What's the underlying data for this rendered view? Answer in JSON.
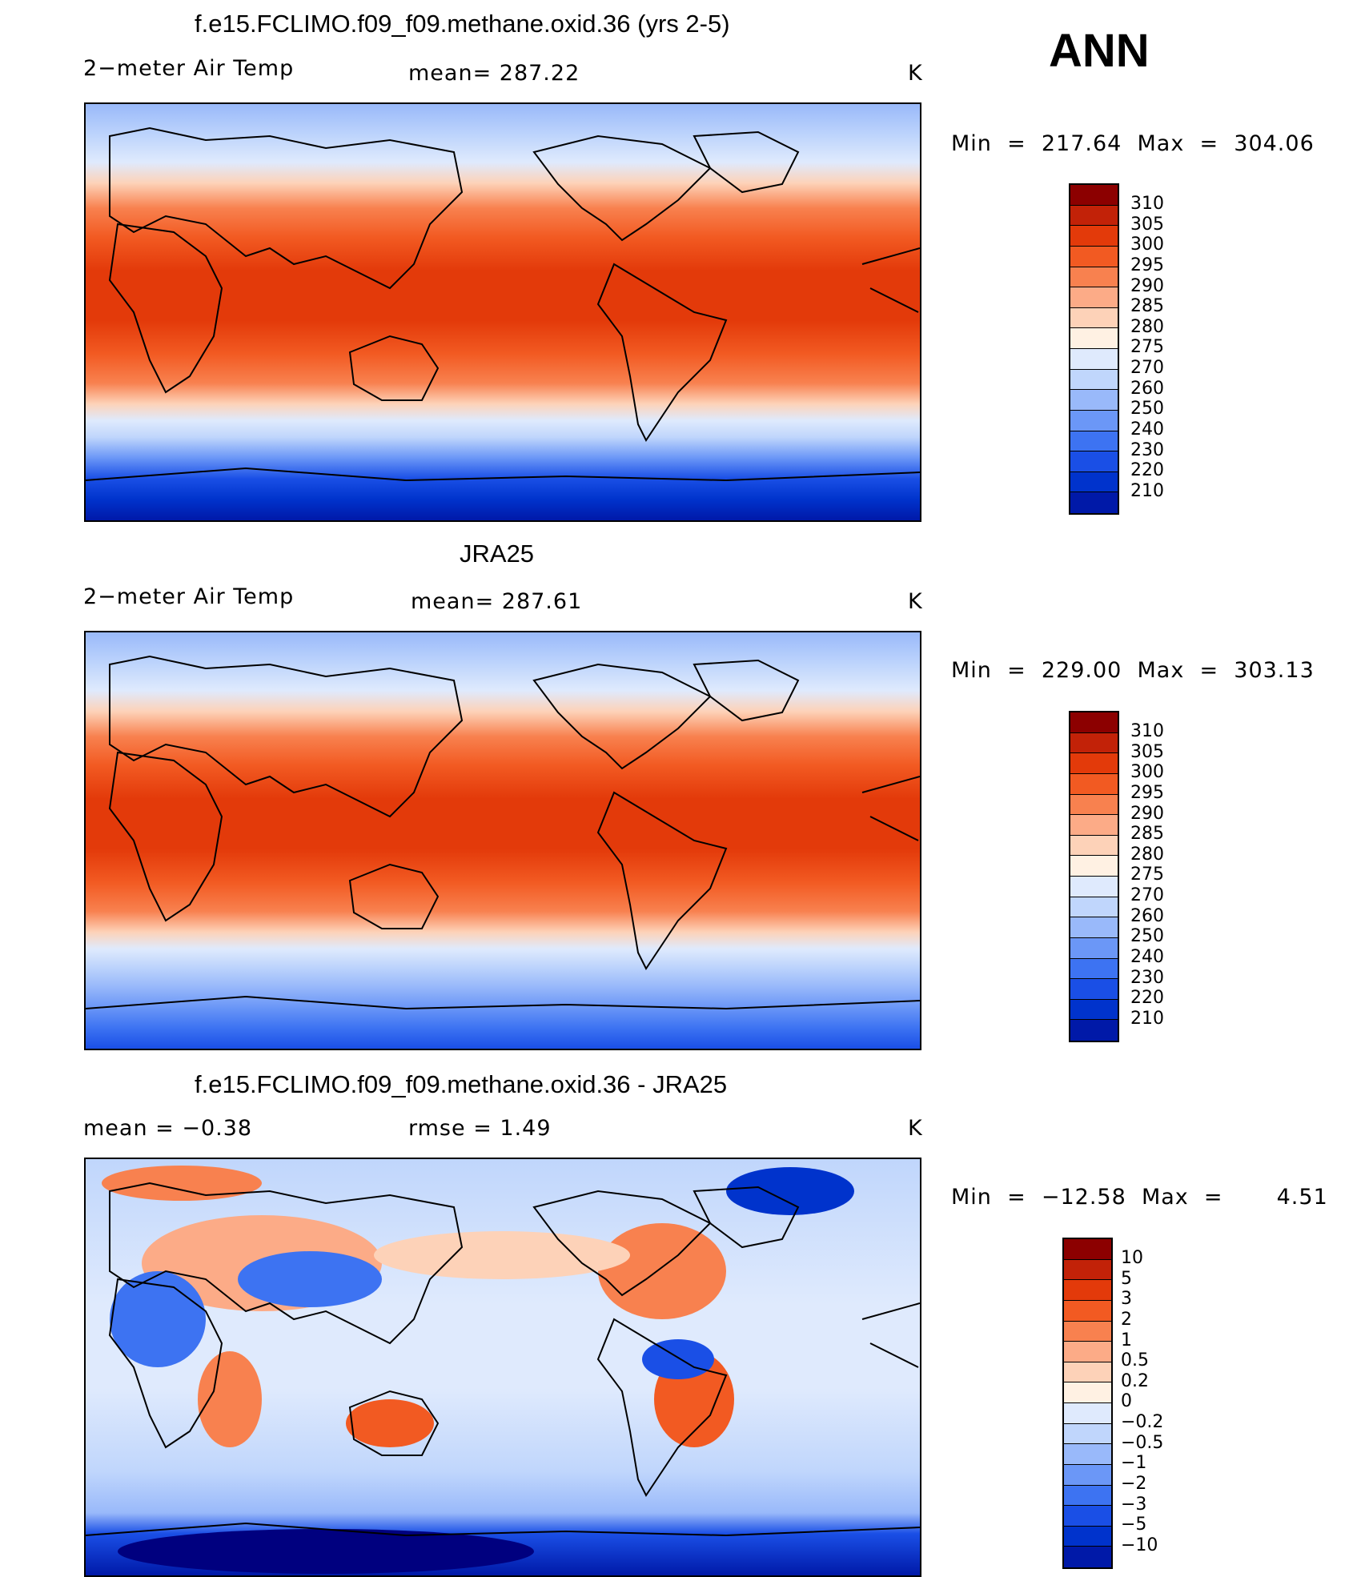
{
  "season": "ANN",
  "colors": {
    "temp": [
      "#00007f",
      "#0019a8",
      "#0033cc",
      "#1a4fe6",
      "#3d73f2",
      "#6b97f7",
      "#99b9fa",
      "#c0d6fc",
      "#dfeafd",
      "#fff1e3",
      "#fdd2b8",
      "#fcab87",
      "#f8814f",
      "#f25a22",
      "#e33a0a",
      "#c22208",
      "#8c0000"
    ],
    "diff": [
      "#00007f",
      "#0019a8",
      "#0033cc",
      "#1a4fe6",
      "#3d73f2",
      "#6b97f7",
      "#99b9fa",
      "#c0d6fc",
      "#dfeafd",
      "#fff1e3",
      "#fdd2b8",
      "#fcab87",
      "#f8814f",
      "#f25a22",
      "#e33a0a",
      "#c22208",
      "#8c0000"
    ],
    "coast": "#000000"
  },
  "panels": [
    {
      "id": "model",
      "title": "f.e15.FCLIMO.f09_f09.methane.oxid.36 (yrs 2-5)",
      "left_label": "2−meter Air Temp",
      "mid_label": "mean=  287.22",
      "units": "K",
      "minmax": "Min  =  217.64  Max  =  304.06",
      "levels": [
        "310",
        "305",
        "300",
        "295",
        "290",
        "285",
        "280",
        "275",
        "270",
        "260",
        "250",
        "240",
        "230",
        "220",
        "210"
      ]
    },
    {
      "id": "obs",
      "title": "JRA25",
      "left_label": "2−meter Air Temp",
      "mid_label": "mean=  287.61",
      "units": "K",
      "minmax": "Min  =  229.00  Max  =  303.13",
      "levels": [
        "310",
        "305",
        "300",
        "295",
        "290",
        "285",
        "280",
        "275",
        "270",
        "260",
        "250",
        "240",
        "230",
        "220",
        "210"
      ]
    },
    {
      "id": "diff",
      "title": "f.e15.FCLIMO.f09_f09.methane.oxid.36 - JRA25",
      "left_label": "mean  =     −0.38",
      "mid_label": "rmse  =      1.49",
      "units": "K",
      "minmax": "Min  =  −12.58  Max  =       4.51",
      "levels": [
        "10",
        "5",
        "3",
        "2",
        "1",
        "0.5",
        "0.2",
        "0",
        "−0.2",
        "−0.5",
        "−1",
        "−2",
        "−3",
        "−5",
        "−10"
      ]
    }
  ]
}
